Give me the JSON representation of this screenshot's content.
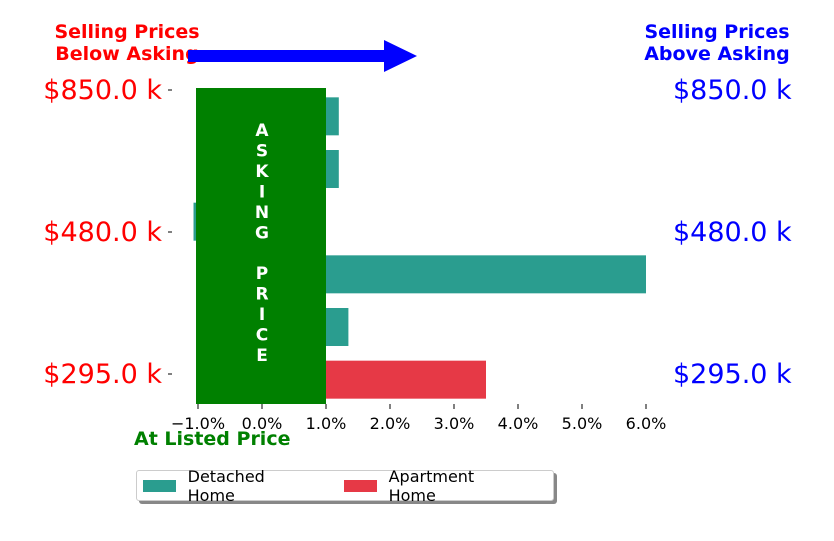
{
  "chart_data": {
    "type": "bar",
    "orientation": "horizontal",
    "top_left_note": [
      "Selling Prices",
      "Below Asking"
    ],
    "top_right_note": [
      "Selling Prices",
      "Above Asking"
    ],
    "left_price_labels": [
      "$850.0 k",
      "$480.0 k",
      "$295.0 k"
    ],
    "right_price_labels": [
      "$850.0 k",
      "$480.0 k",
      "$295.0 k"
    ],
    "x_tick_labels": [
      "−1.0%",
      "0.0%",
      "1.0%",
      "2.0%",
      "3.0%",
      "4.0%",
      "5.0%",
      "6.0%"
    ],
    "x_ticks": [
      -1,
      0,
      1,
      2,
      3,
      4,
      5,
      6
    ],
    "xlim": [
      -1.1,
      6.0
    ],
    "asking_band": {
      "from": -1.0,
      "to": 1.0,
      "label": "ASKING PRICE"
    },
    "below_label": "At Listed Price",
    "bars": [
      {
        "series": "Detached Home",
        "value": 1.2
      },
      {
        "series": "Detached Home",
        "value": 1.2
      },
      {
        "series": "Detached Home",
        "value": -1.07
      },
      {
        "series": "Detached Home",
        "value": 6.0
      },
      {
        "series": "Detached Home",
        "value": 1.35
      },
      {
        "series": "Apartment Home",
        "value": 3.5
      }
    ],
    "legend": [
      {
        "name": "Detached Home",
        "color": "#2a9d8f"
      },
      {
        "name": "Apartment Home",
        "color": "#e63946"
      }
    ],
    "legend_position": "bottom"
  },
  "colors": {
    "below": "#ff0000",
    "above": "#0000ff",
    "band": "#008000",
    "arrow": "#0000ff"
  }
}
